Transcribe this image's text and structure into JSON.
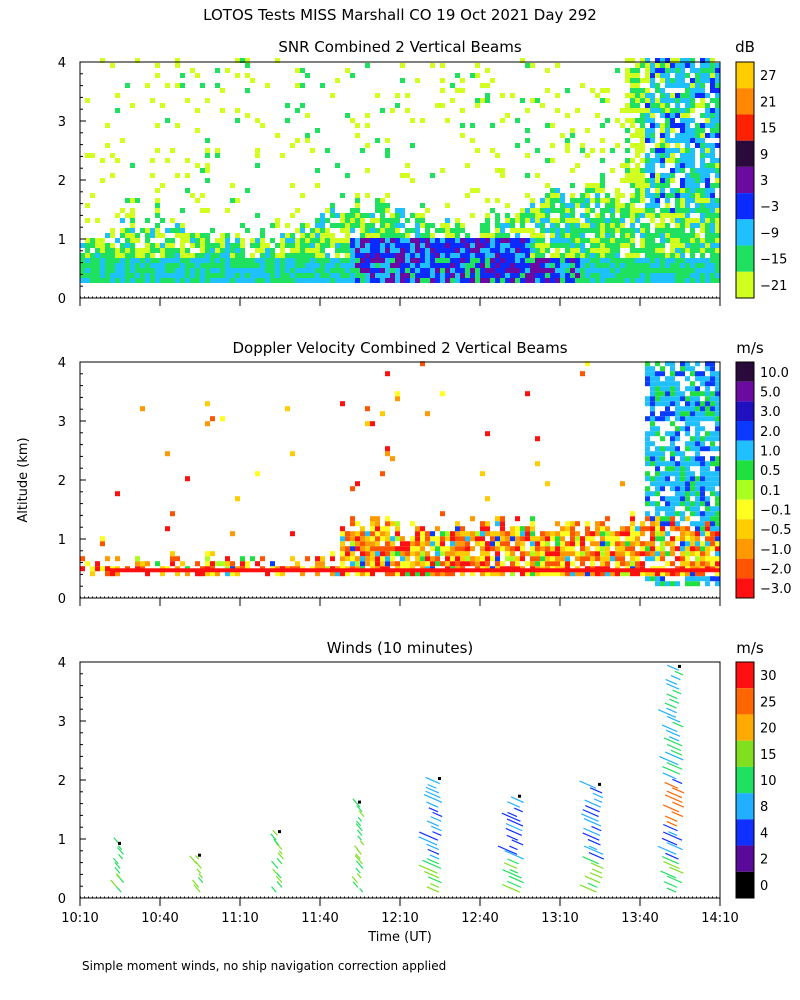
{
  "page_title": "LOTOS Tests MISS Marshall CO  19 Oct 2021 Day 292",
  "footnote": "Simple moment winds, no ship navigation correction applied",
  "shared_y_label": "Altitude (km)",
  "shared_x_label": "Time (UT)",
  "chart_data": [
    {
      "type": "heatmap",
      "title": "SNR Combined 2 Vertical Beams",
      "unit": "dB",
      "x_ticks": [
        "10:10",
        "10:40",
        "11:10",
        "11:40",
        "12:10",
        "12:40",
        "13:10",
        "13:40",
        "14:10"
      ],
      "x_range": [
        "10:10",
        "14:10"
      ],
      "y_ticks": [
        0,
        1,
        2,
        3,
        4
      ],
      "y_range": [
        0,
        4
      ],
      "colorbar": {
        "tick_labels": [
          "27",
          "21",
          "15",
          "9",
          "3",
          "−3",
          "−9",
          "−15",
          "−21"
        ],
        "colors": [
          "#ffcc00",
          "#ff8800",
          "#ff2200",
          "#2a0a3a",
          "#6a0aa0",
          "#0a2aff",
          "#20c0ff",
          "#20e060",
          "#d0ff20"
        ]
      }
    },
    {
      "type": "heatmap",
      "title": "Doppler Velocity Combined 2 Vertical Beams",
      "unit": "m/s",
      "x_ticks": [
        "10:10",
        "10:40",
        "11:10",
        "11:40",
        "12:10",
        "12:40",
        "13:10",
        "13:40",
        "14:10"
      ],
      "x_range": [
        "10:10",
        "14:10"
      ],
      "y_ticks": [
        0,
        1,
        2,
        3,
        4
      ],
      "y_range": [
        0,
        4
      ],
      "colorbar": {
        "tick_labels": [
          "10.0",
          "5.0",
          "3.0",
          "2.0",
          "1.0",
          "0.5",
          "0.1",
          "−0.1",
          "−0.5",
          "−1.0",
          "−2.0",
          "−3.0"
        ],
        "colors": [
          "#2a0a3a",
          "#6a0aa0",
          "#2010c0",
          "#0a3aff",
          "#20c0ff",
          "#20e040",
          "#aaff20",
          "#ffff20",
          "#ffcc00",
          "#ff9900",
          "#ff5500",
          "#ff1010"
        ]
      }
    },
    {
      "type": "scatter",
      "title": "Winds (10 minutes)",
      "unit": "m/s",
      "x_ticks": [
        "10:10",
        "10:40",
        "11:10",
        "11:40",
        "12:10",
        "12:40",
        "13:10",
        "13:40",
        "14:10"
      ],
      "x_range": [
        "10:10",
        "14:10"
      ],
      "y_ticks": [
        0,
        1,
        2,
        3,
        4
      ],
      "y_range": [
        0,
        4
      ],
      "profile_times": [
        "10:25",
        "10:55",
        "11:25",
        "11:55",
        "12:25",
        "12:55",
        "13:25",
        "13:55"
      ],
      "colorbar": {
        "tick_labels": [
          "30",
          "25",
          "20",
          "15",
          "10",
          "8",
          "4",
          "2",
          "0"
        ],
        "colors": [
          "#ff1010",
          "#ff6600",
          "#ffaa00",
          "#80e020",
          "#20e060",
          "#20b0ff",
          "#1030ff",
          "#5a0a9a",
          "#000000"
        ]
      }
    }
  ]
}
